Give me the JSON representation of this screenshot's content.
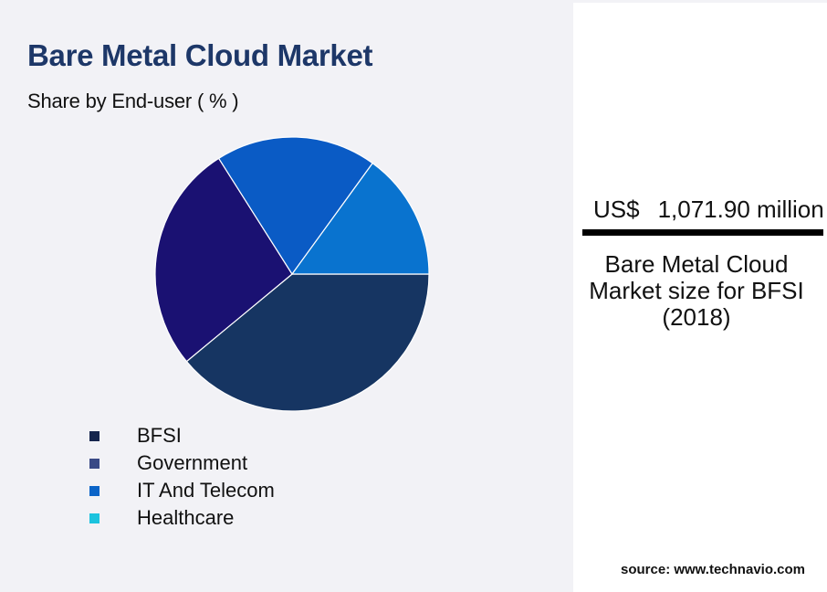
{
  "title": "Bare Metal Cloud Market",
  "subtitle": "Share by End-user ( % )",
  "chart_data": {
    "type": "pie",
    "categories": [
      "BFSI",
      "Government",
      "IT And Telecom",
      "Healthcare"
    ],
    "values": [
      39,
      27,
      19,
      15
    ],
    "colors": [
      "#163562",
      "#1a1172",
      "#0a5bc5",
      "#0973cf"
    ],
    "legend_colors": [
      "#15254d",
      "#3a4a86",
      "#0b64c8",
      "#1cc3de"
    ],
    "legend_position": "bottom-left"
  },
  "stat": {
    "currency": "US$",
    "value": "1,071.90 million",
    "caption": "Bare Metal Cloud Market size for BFSI (2018)"
  },
  "source": "source: www.technavio.com"
}
